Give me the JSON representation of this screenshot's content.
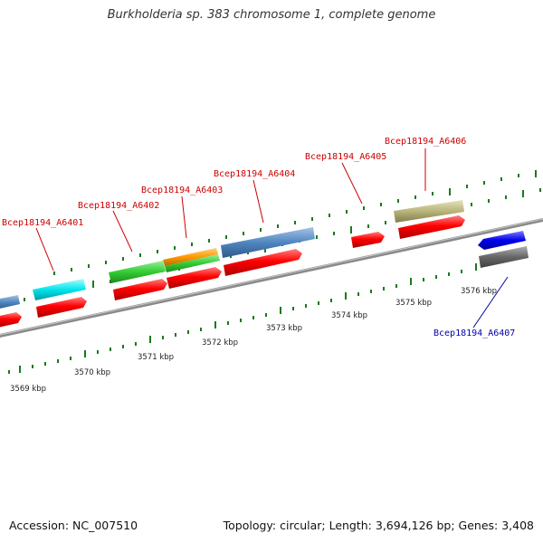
{
  "title": "Burkholderia sp. 383 chromosome 1, complete genome",
  "footer": {
    "accession": "Accession: NC_007510",
    "summary": "Topology: circular; Length: 3,694,126 bp; Genes: 3,408"
  },
  "scale_labels": [
    "3569 kbp",
    "3570 kbp",
    "3571 kbp",
    "3572 kbp",
    "3573 kbp",
    "3574 kbp",
    "3575 kbp",
    "3576 kbp"
  ],
  "gene_labels": [
    {
      "text": "Bcep18194_A6401",
      "strand": "forward",
      "color": "#cc0000"
    },
    {
      "text": "Bcep18194_A6402",
      "strand": "forward",
      "color": "#cc0000"
    },
    {
      "text": "Bcep18194_A6403",
      "strand": "forward",
      "color": "#cc0000"
    },
    {
      "text": "Bcep18194_A6404",
      "strand": "forward",
      "color": "#cc0000"
    },
    {
      "text": "Bcep18194_A6405",
      "strand": "forward",
      "color": "#cc0000"
    },
    {
      "text": "Bcep18194_A6406",
      "strand": "forward",
      "color": "#cc0000"
    },
    {
      "text": "Bcep18194_A6407",
      "strand": "reverse",
      "color": "#0000aa"
    }
  ],
  "feature_colors": {
    "cds": "#ff0000",
    "cyan": "#00e5ee",
    "green": "#33cc33",
    "orange": "#ff9900",
    "steelblue": "#4f86c0",
    "khaki": "#b8b47a",
    "blue": "#0000ee",
    "gray": "#666666",
    "backbone": "#888888",
    "ticks": "#1a7a1a"
  }
}
